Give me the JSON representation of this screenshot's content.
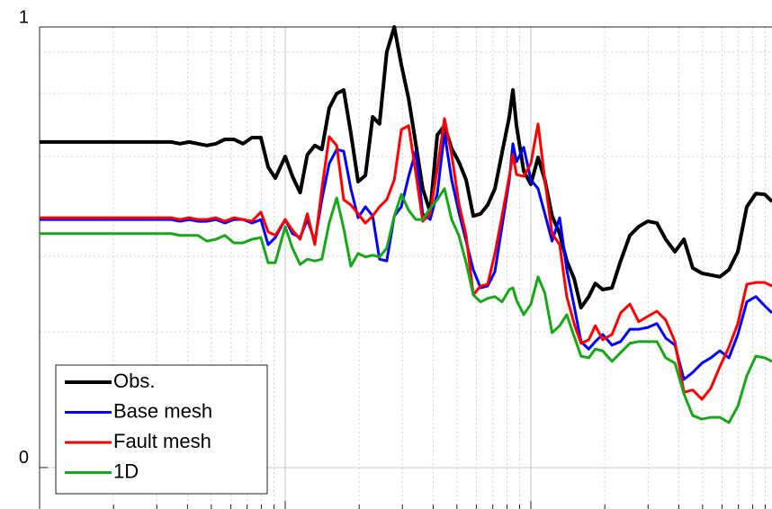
{
  "chart_data": {
    "type": "line",
    "x_scale": "log",
    "xlim": [
      1,
      1000
    ],
    "xticks": [
      1,
      10,
      100,
      1000
    ],
    "xminorticks": [
      2,
      3,
      4,
      5,
      6,
      7,
      8,
      9,
      20,
      30,
      40,
      50,
      60,
      70,
      80,
      90,
      200,
      300,
      400,
      500,
      600,
      700,
      800,
      900
    ],
    "ylim": [
      -0.094,
      1
    ],
    "yticks": [
      0,
      1
    ],
    "yminorticks": [
      0.308,
      0.48,
      0.706,
      0.849,
      0.943
    ],
    "grid": true,
    "legend": "lower left",
    "x": [
      1,
      1.245,
      1.604,
      2.065,
      2.66,
      3.43,
      3.73,
      4.06,
      4.41,
      4.8,
      5.22,
      5.68,
      6.18,
      6.73,
      7.32,
      7.96,
      8.52,
      9.11,
      10,
      10.7,
      11.5,
      12.3,
      13.2,
      14.1,
      15.1,
      16.2,
      17.3,
      18.5,
      19.8,
      21.2,
      22.7,
      24.2,
      25.9,
      27.8,
      29.7,
      31.8,
      34,
      36.3,
      38.9,
      41.6,
      44.5,
      47.6,
      50.9,
      54.5,
      58.3,
      62.4,
      66.7,
      71.4,
      76.3,
      81.7,
      84.5,
      87.4,
      93.5,
      100,
      107,
      114,
      122,
      131,
      140,
      150,
      160,
      172,
      183,
      196,
      214,
      232,
      253,
      275,
      299,
      326,
      354,
      386,
      420,
      456,
      497,
      540,
      588,
      640,
      696,
      757,
      824,
      896,
      959
    ],
    "series": [
      {
        "name": "Obs.",
        "color": "#000000",
        "width": 4,
        "values": [
          0.739,
          0.739,
          0.739,
          0.739,
          0.739,
          0.739,
          0.735,
          0.739,
          0.735,
          0.731,
          0.735,
          0.745,
          0.745,
          0.735,
          0.749,
          0.749,
          0.682,
          0.657,
          0.706,
          0.661,
          0.624,
          0.71,
          0.731,
          0.722,
          0.816,
          0.849,
          0.857,
          0.759,
          0.649,
          0.663,
          0.796,
          0.78,
          0.943,
          1.0,
          0.914,
          0.837,
          0.735,
          0.633,
          0.58,
          0.755,
          0.776,
          0.724,
          0.694,
          0.653,
          0.571,
          0.576,
          0.596,
          0.633,
          0.714,
          0.796,
          0.857,
          0.776,
          0.673,
          0.643,
          0.704,
          0.653,
          0.571,
          0.531,
          0.469,
          0.429,
          0.363,
          0.388,
          0.418,
          0.404,
          0.408,
          0.469,
          0.527,
          0.547,
          0.559,
          0.555,
          0.518,
          0.49,
          0.518,
          0.453,
          0.441,
          0.437,
          0.433,
          0.449,
          0.49,
          0.592,
          0.622,
          0.62,
          0.604
        ]
      },
      {
        "name": "Base mesh",
        "color": "#0000ff",
        "width": 3,
        "values": [
          0.563,
          0.563,
          0.563,
          0.563,
          0.563,
          0.563,
          0.559,
          0.563,
          0.559,
          0.559,
          0.563,
          0.555,
          0.563,
          0.563,
          0.555,
          0.563,
          0.506,
          0.522,
          0.563,
          0.531,
          0.522,
          0.563,
          0.514,
          0.608,
          0.69,
          0.722,
          0.718,
          0.633,
          0.567,
          0.592,
          0.571,
          0.473,
          0.469,
          0.571,
          0.592,
          0.661,
          0.718,
          0.576,
          0.563,
          0.622,
          0.759,
          0.653,
          0.58,
          0.514,
          0.449,
          0.408,
          0.412,
          0.445,
          0.547,
          0.653,
          0.735,
          0.694,
          0.727,
          0.653,
          0.633,
          0.576,
          0.514,
          0.567,
          0.449,
          0.367,
          0.286,
          0.269,
          0.286,
          0.302,
          0.278,
          0.286,
          0.314,
          0.314,
          0.318,
          0.327,
          0.294,
          0.278,
          0.2,
          0.216,
          0.237,
          0.249,
          0.265,
          0.249,
          0.302,
          0.376,
          0.388,
          0.367,
          0.351
        ]
      },
      {
        "name": "Fault mesh",
        "color": "#ff0000",
        "width": 3,
        "values": [
          0.567,
          0.567,
          0.567,
          0.567,
          0.567,
          0.567,
          0.563,
          0.567,
          0.563,
          0.563,
          0.567,
          0.559,
          0.567,
          0.563,
          0.559,
          0.58,
          0.535,
          0.527,
          0.563,
          0.539,
          0.518,
          0.576,
          0.506,
          0.633,
          0.751,
          0.731,
          0.608,
          0.596,
          0.576,
          0.555,
          0.571,
          0.592,
          0.608,
          0.653,
          0.767,
          0.776,
          0.669,
          0.559,
          0.576,
          0.678,
          0.792,
          0.71,
          0.6,
          0.527,
          0.392,
          0.412,
          0.416,
          0.486,
          0.571,
          0.661,
          0.71,
          0.665,
          0.661,
          0.69,
          0.78,
          0.653,
          0.531,
          0.506,
          0.388,
          0.327,
          0.282,
          0.29,
          0.322,
          0.29,
          0.302,
          0.351,
          0.371,
          0.331,
          0.343,
          0.355,
          0.335,
          0.286,
          0.171,
          0.176,
          0.155,
          0.18,
          0.229,
          0.273,
          0.327,
          0.416,
          0.42,
          0.42,
          0.412
        ]
      },
      {
        "name": "1D",
        "color": "#16a816",
        "width": 3,
        "values": [
          0.531,
          0.531,
          0.531,
          0.531,
          0.531,
          0.531,
          0.527,
          0.527,
          0.527,
          0.514,
          0.518,
          0.527,
          0.51,
          0.51,
          0.518,
          0.522,
          0.465,
          0.465,
          0.547,
          0.498,
          0.461,
          0.473,
          0.469,
          0.473,
          0.555,
          0.612,
          0.543,
          0.457,
          0.486,
          0.478,
          0.482,
          0.478,
          0.498,
          0.571,
          0.62,
          0.584,
          0.563,
          0.563,
          0.588,
          0.608,
          0.633,
          0.563,
          0.527,
          0.465,
          0.392,
          0.376,
          0.384,
          0.388,
          0.376,
          0.404,
          0.408,
          0.38,
          0.347,
          0.371,
          0.433,
          0.396,
          0.306,
          0.322,
          0.347,
          0.298,
          0.253,
          0.249,
          0.269,
          0.265,
          0.241,
          0.261,
          0.282,
          0.286,
          0.286,
          0.286,
          0.249,
          0.237,
          0.167,
          0.118,
          0.11,
          0.114,
          0.114,
          0.102,
          0.139,
          0.208,
          0.253,
          0.249,
          0.241
        ]
      }
    ]
  }
}
